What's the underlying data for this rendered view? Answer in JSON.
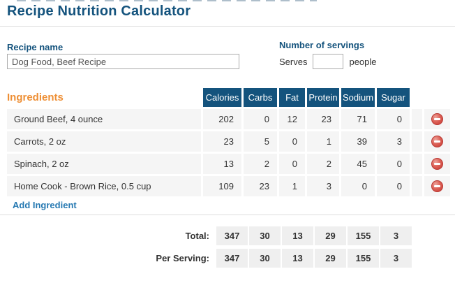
{
  "page": {
    "title": "Recipe Nutrition Calculator"
  },
  "recipe": {
    "label": "Recipe name",
    "value": "Dog Food, Beef Recipe"
  },
  "servings": {
    "label": "Number of servings",
    "prefix": "Serves",
    "value": "",
    "suffix": "people"
  },
  "ingredients": {
    "heading": "Ingredients",
    "columns": [
      "Calories",
      "Carbs",
      "Fat",
      "Protein",
      "Sodium",
      "Sugar"
    ],
    "rows": [
      {
        "name": "Ground Beef, 4 ounce",
        "values": [
          "202",
          "0",
          "12",
          "23",
          "71",
          "0"
        ]
      },
      {
        "name": "Carrots, 2 oz",
        "values": [
          "23",
          "5",
          "0",
          "1",
          "39",
          "3"
        ]
      },
      {
        "name": "Spinach, 2 oz",
        "values": [
          "13",
          "2",
          "0",
          "2",
          "45",
          "0"
        ]
      },
      {
        "name": "Home Cook - Brown Rice, 0.5 cup",
        "values": [
          "109",
          "23",
          "1",
          "3",
          "0",
          "0"
        ]
      }
    ],
    "remove_icon": "minus-circle",
    "add_label": "Add Ingredient"
  },
  "totals": {
    "total_label": "Total:",
    "total_values": [
      "347",
      "30",
      "13",
      "29",
      "155",
      "3"
    ],
    "per_serving_label": "Per Serving:",
    "per_serving_values": [
      "347",
      "30",
      "13",
      "29",
      "155",
      "3"
    ]
  },
  "colors": {
    "primary_blue": "#14537D",
    "heading_orange": "#EE8F35",
    "link_blue": "#2679B2",
    "row_bg": "#F5F5F5",
    "total_cell_bg": "#EFEFEF",
    "remove_red": "#D9534F"
  }
}
